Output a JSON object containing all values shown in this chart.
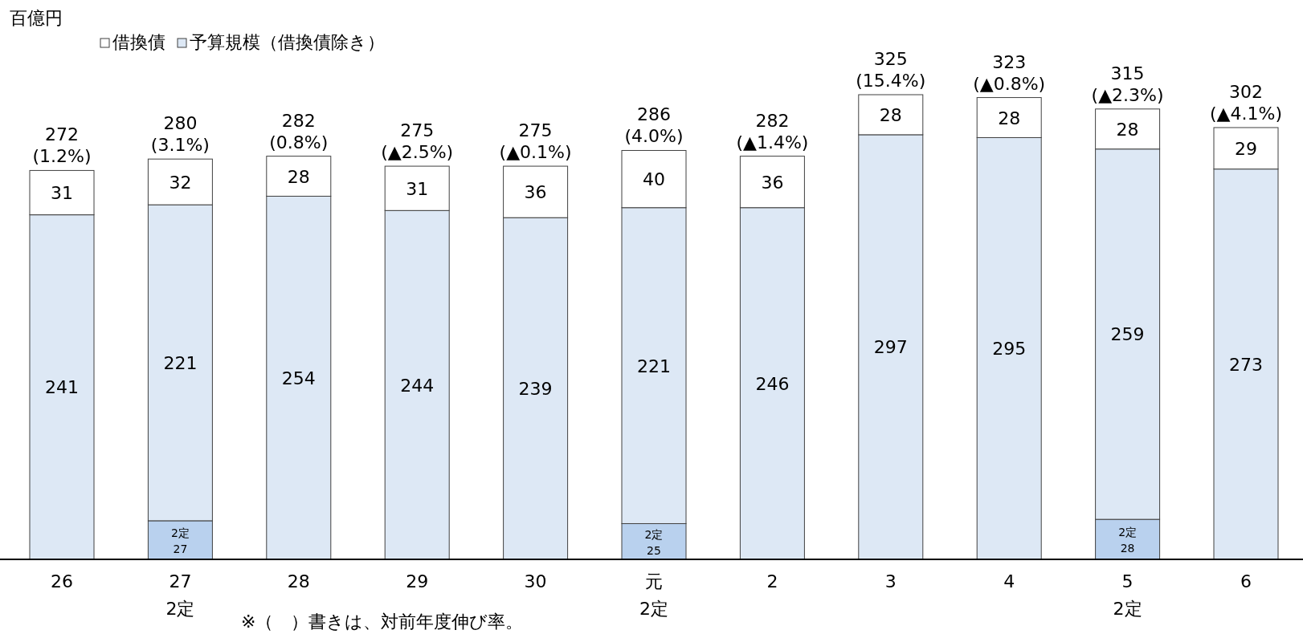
{
  "chart_data": {
    "type": "bar",
    "stacked": true,
    "ylabel": "百億円",
    "categories": [
      "26",
      "27\n2定",
      "28",
      "29",
      "30",
      "元\n2定",
      "2",
      "3",
      "4",
      "5\n2定",
      "6"
    ],
    "series": [
      {
        "color": "#b9d1ee",
        "values": [
          null,
          27,
          null,
          null,
          null,
          25,
          null,
          null,
          null,
          28,
          null
        ],
        "value_labels": [
          null,
          "2定\n27",
          null,
          null,
          null,
          "2定\n25",
          null,
          null,
          null,
          "2定\n28",
          null
        ]
      },
      {
        "name": "予算規模（借換債除き）",
        "color": "#dde8f5",
        "values": [
          241,
          221,
          254,
          244,
          239,
          221,
          246,
          297,
          295,
          259,
          273
        ]
      },
      {
        "name": "借換債",
        "color": "#ffffff",
        "values": [
          31,
          32,
          28,
          31,
          36,
          40,
          36,
          28,
          28,
          28,
          29
        ]
      }
    ],
    "data_labels": true,
    "totals": [
      "272\n(1.2%)",
      "280\n(3.1%)",
      "282\n(0.8%)",
      "275\n(▲2.5%)",
      "275\n(▲0.1%)",
      "286\n(4.0%)",
      "282\n(▲1.4%)",
      "325\n(15.4%)",
      "323\n(▲0.8%)",
      "315\n(▲2.3%)",
      "302\n(▲4.1%)"
    ],
    "legend": "top left",
    "annotations": [
      "※（　）書きは、対前年度伸び率。"
    ]
  }
}
